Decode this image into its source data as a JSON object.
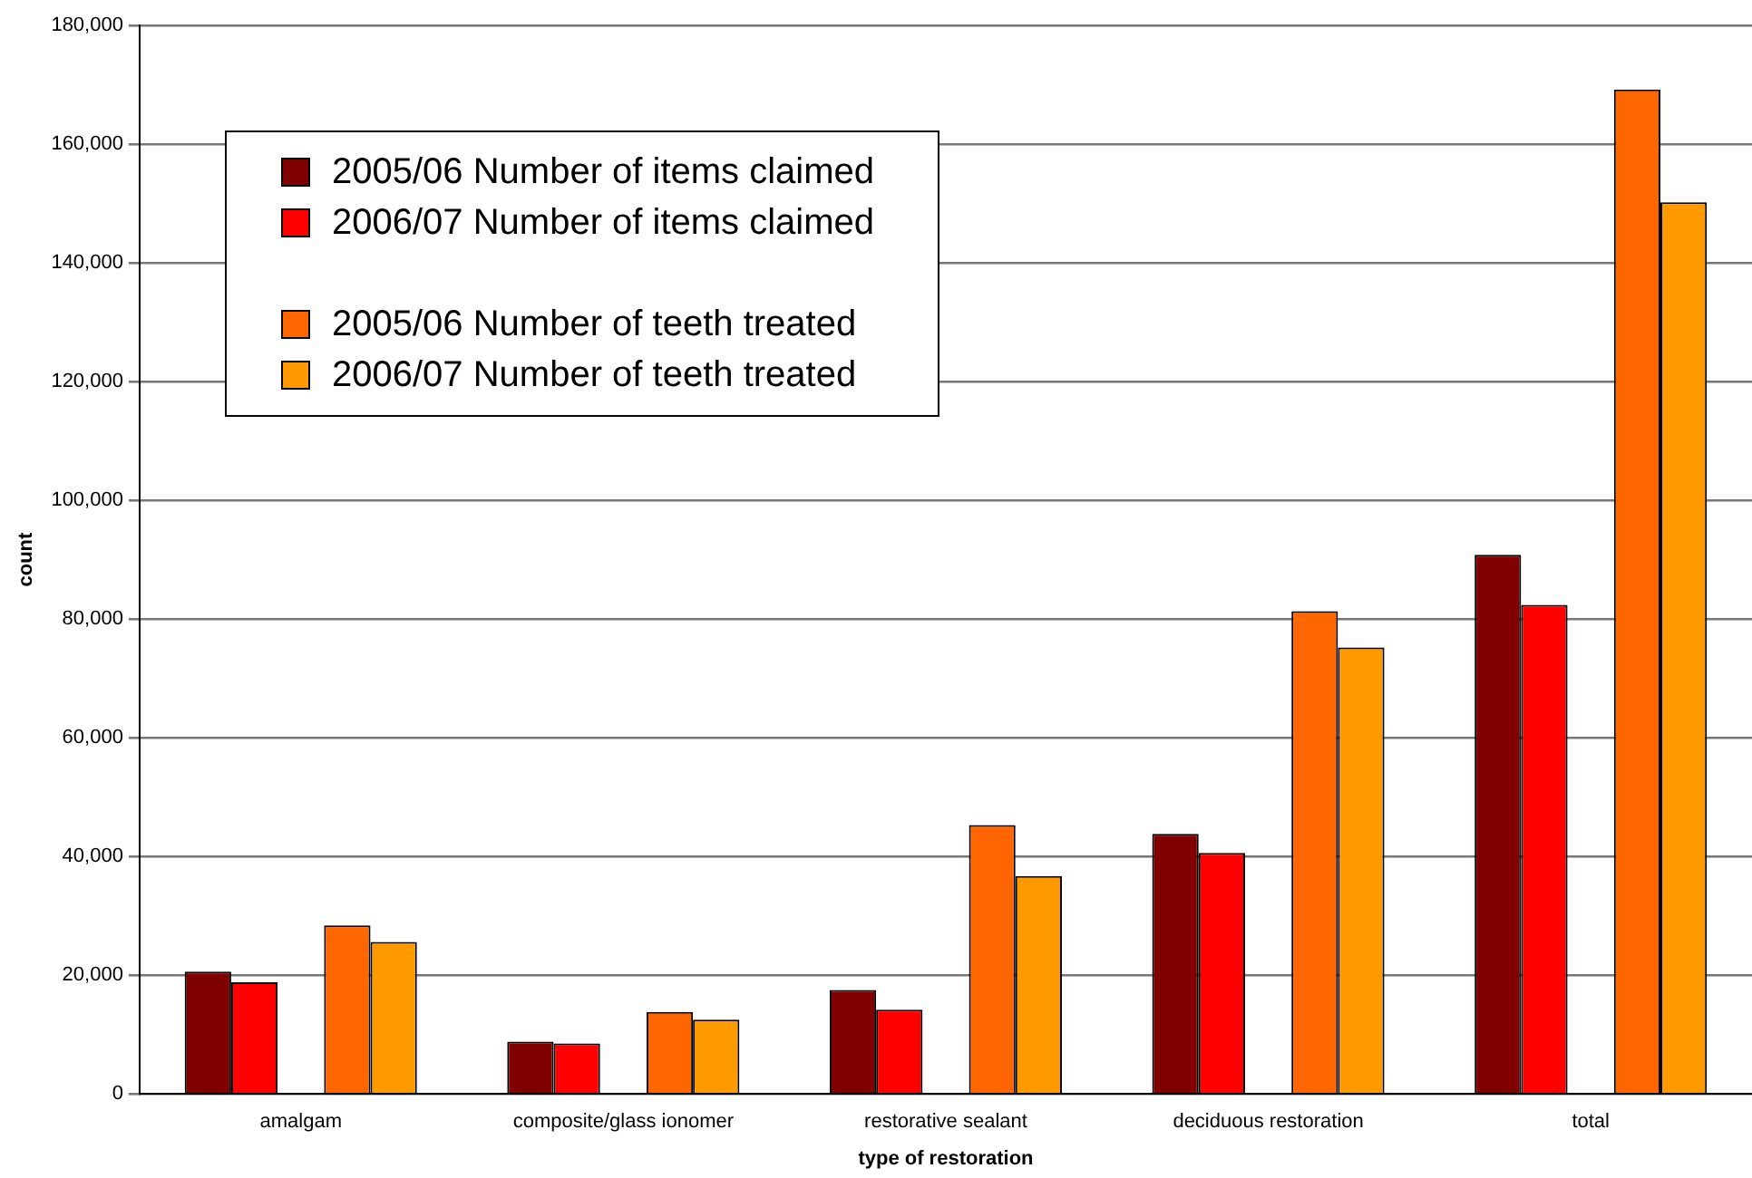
{
  "chart_data": {
    "type": "bar",
    "xlabel": "type of restoration",
    "ylabel": "count",
    "categories": [
      "amalgam",
      "composite/glass ionomer",
      "restorative sealant",
      "deciduous restoration",
      "total"
    ],
    "series": [
      {
        "name": "2005/06  Number of items claimed",
        "color": "#800000",
        "values": [
          20600,
          8800,
          17500,
          43800,
          90800
        ]
      },
      {
        "name": "2006/07  Number of items claimed",
        "color": "#ff0000",
        "values": [
          18800,
          8500,
          14200,
          40600,
          82400
        ]
      },
      {
        "name": "2005/06  Number of teeth treated",
        "color": "#ff6600",
        "values": [
          28400,
          13800,
          45300,
          81300,
          169200
        ]
      },
      {
        "name": "2006/07  Number of teeth treated",
        "color": "#ff9900",
        "values": [
          25600,
          12500,
          36700,
          75200,
          150200
        ]
      }
    ],
    "ylim": [
      0,
      180000
    ],
    "yticks": [
      0,
      {
        "value": 20000,
        "label": "20,000"
      },
      {
        "value": 40000,
        "label": "40,000"
      },
      {
        "value": 60000,
        "label": "60,000"
      },
      {
        "value": 80000,
        "label": "80,000"
      },
      {
        "value": 100000,
        "label": "100,000"
      },
      {
        "value": 120000,
        "label": "120,000"
      },
      {
        "value": 140000,
        "label": "140,000"
      },
      {
        "value": 160000,
        "label": "160,000"
      },
      {
        "value": 180000,
        "label": "180,000"
      }
    ],
    "grid": "y",
    "legend": "top left"
  }
}
